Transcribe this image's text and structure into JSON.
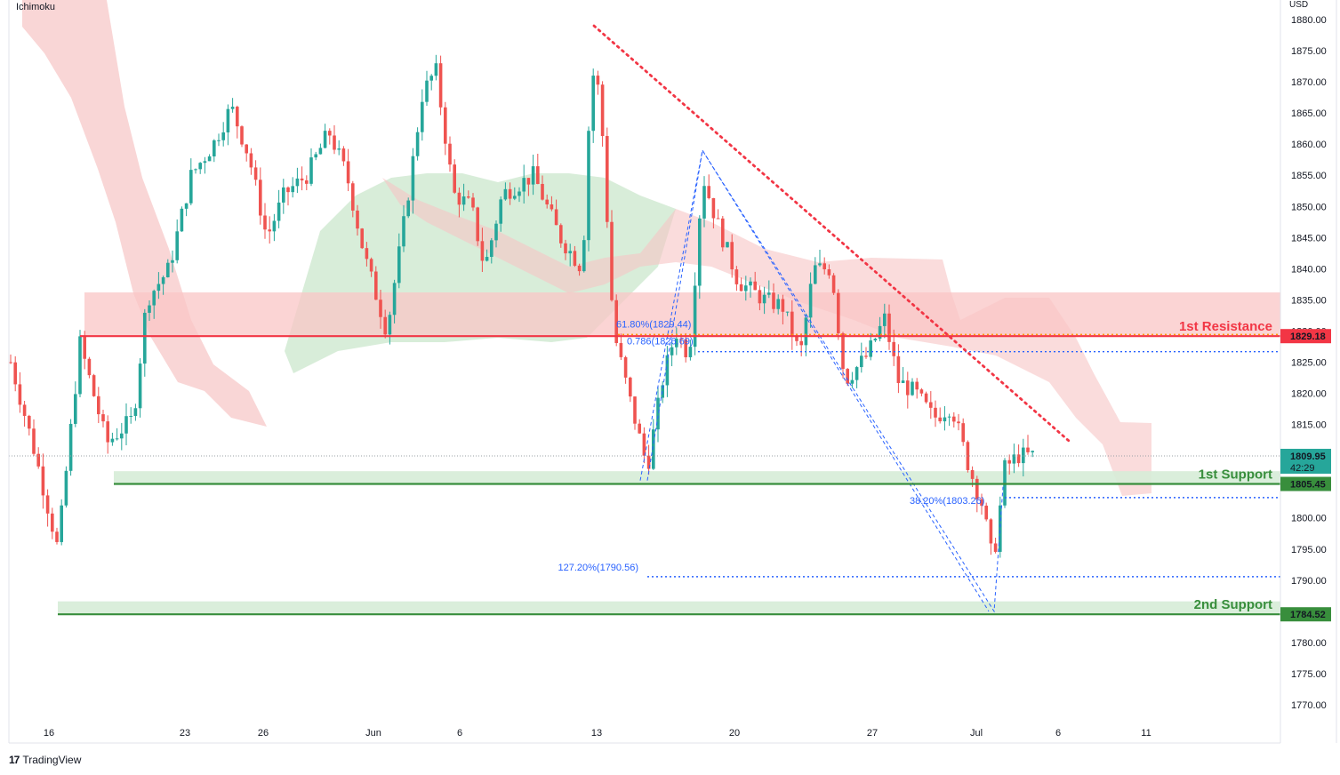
{
  "indicator": "Ichimoku",
  "currency": "USD",
  "brand": "TradingView",
  "colors": {
    "bull": "#26a69a",
    "bear": "#ef5350",
    "resistance": "#f23645",
    "support": "#388e3c",
    "fib": "#2962ff",
    "fib_orange": "#ff9800",
    "cloud_bear": "#f7c5c5",
    "cloud_bull": "#c8e6c9",
    "zone_res": "#f9c6c6",
    "zone_sup": "#d6ecd7"
  },
  "chart_data": {
    "type": "candlestick",
    "ylim": [
      1767,
      1882
    ],
    "y_ticks": [
      1770,
      1775,
      1780,
      1785,
      1790,
      1795,
      1800,
      1805,
      1810,
      1815,
      1820,
      1825,
      1830,
      1835,
      1840,
      1845,
      1850,
      1855,
      1860,
      1865,
      1870,
      1875,
      1880
    ],
    "x_ticks": [
      "16",
      "23",
      "26",
      "Jun",
      "6",
      "13",
      "20",
      "27",
      "Jul",
      "6",
      "11"
    ],
    "levels": [
      {
        "name": "1st Resistance",
        "price": "1829.18",
        "value": 1829.18,
        "kind": "resistance"
      },
      {
        "name": "1st Support",
        "price": "1805.45",
        "value": 1805.45,
        "kind": "support"
      },
      {
        "name": "2nd Support",
        "price": "1784.52",
        "value": 1784.52,
        "kind": "support"
      }
    ],
    "current_price": {
      "price": "1809.95",
      "countdown": "42:29",
      "value": 1809.95
    },
    "fib_labels": [
      {
        "text": "61.80%(1829.44)",
        "value": 1829.44
      },
      {
        "text": "0.786(1826.69)",
        "value": 1826.69
      },
      {
        "text": "38.20%(1803.26)",
        "value": 1803.26
      },
      {
        "text": "127.20%(1790.56)",
        "value": 1790.56
      }
    ],
    "trendline": {
      "from": 1879,
      "to": 1812
    }
  }
}
